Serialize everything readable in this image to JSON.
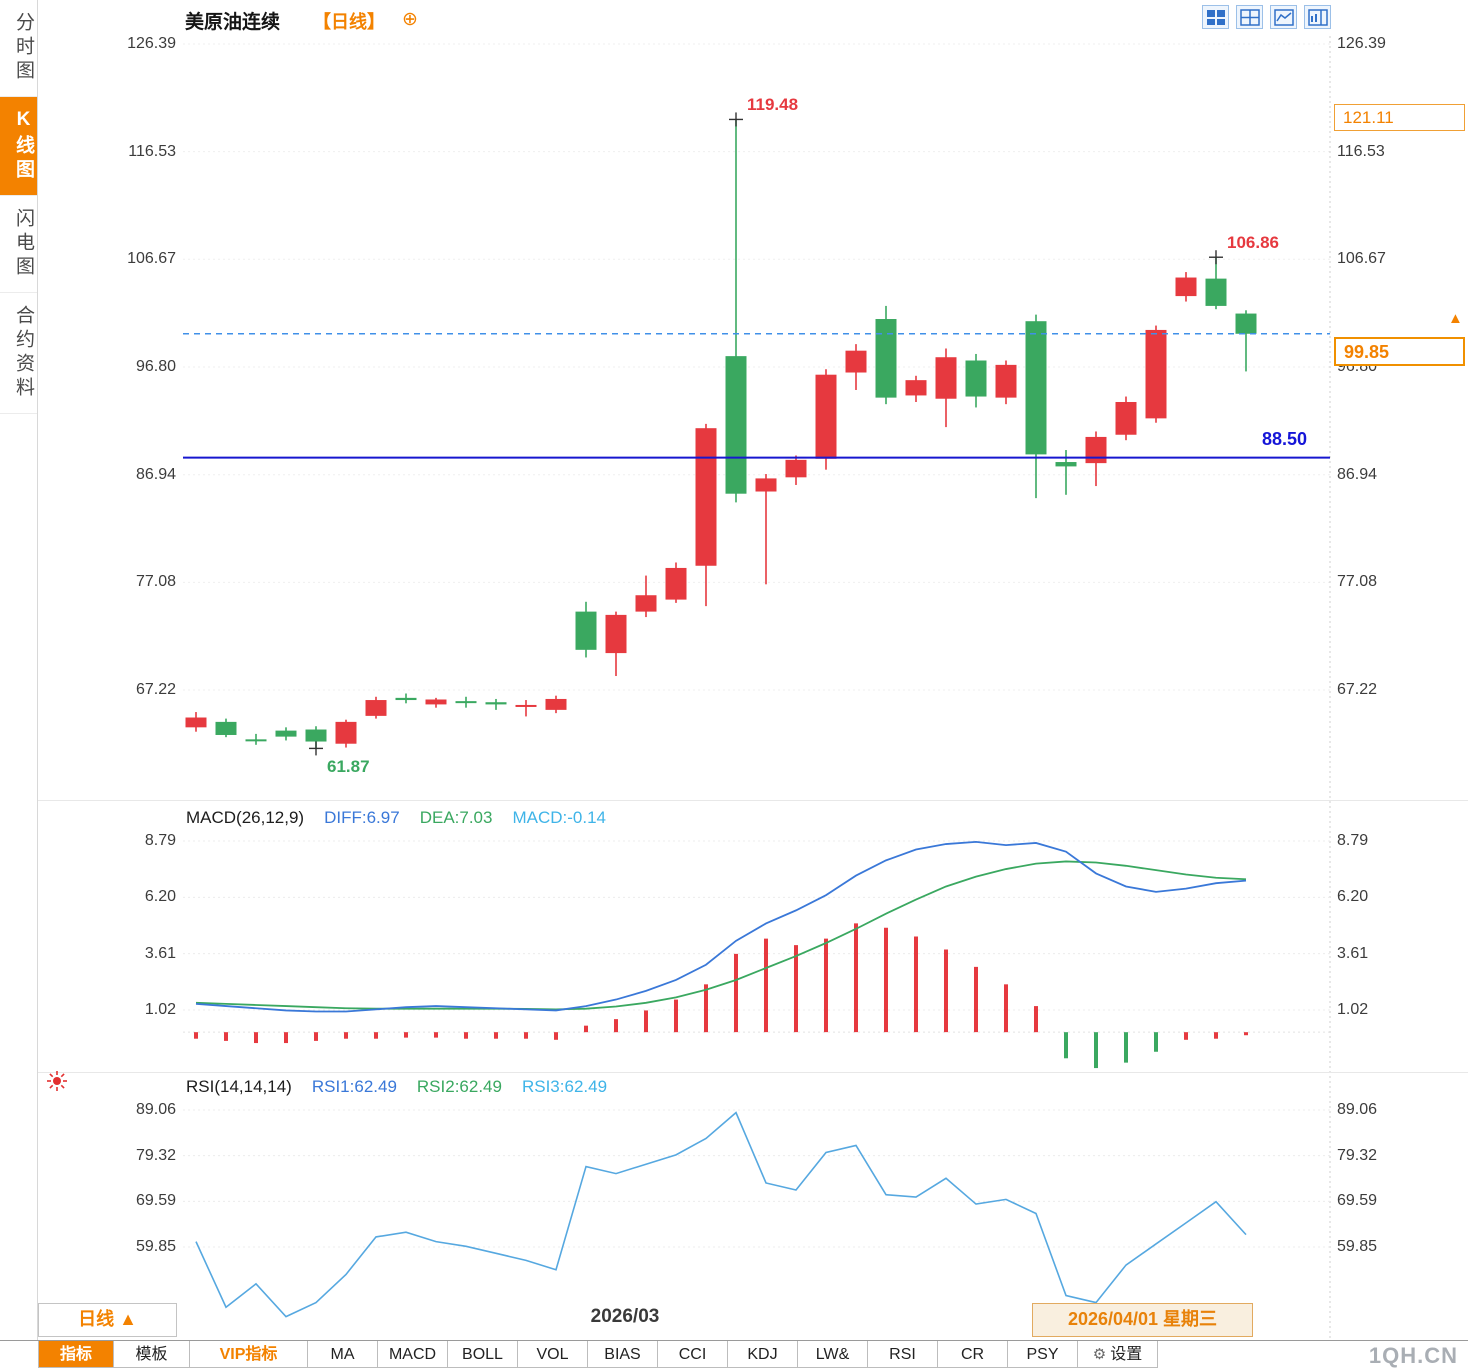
{
  "colors": {
    "up": "#e6393f",
    "down": "#3aa860",
    "accent_orange": "#f38200",
    "hline_blue": "#1717cf",
    "dashed_blue": "#4090e8",
    "diff_blue": "#3a78d8",
    "dea_green": "#3aa860",
    "macd_cyan": "#3fb4e8",
    "rsi_blue": "#56a8e0"
  },
  "sidebar": {
    "items": [
      {
        "label": "分时图",
        "active": false
      },
      {
        "label": "K线图",
        "active": true
      },
      {
        "label": "闪电图",
        "active": false
      },
      {
        "label": "合约资料",
        "active": false
      }
    ]
  },
  "header": {
    "title": "美原油连续",
    "period_tag": "【日线】"
  },
  "price_tags": {
    "upper_price": "121.11",
    "last_price": "99.85",
    "direction_arrow": "▲"
  },
  "macd_header": {
    "name": "MACD(26,12,9)",
    "diff": "DIFF:6.97",
    "dea": "DEA:7.03",
    "macd": "MACD:-0.14"
  },
  "rsi_header": {
    "name": "RSI(14,14,14)",
    "rsi1": "RSI1:62.49",
    "rsi2": "RSI2:62.49",
    "rsi3": "RSI3:62.49"
  },
  "footer": {
    "period": "日线",
    "arrow": "▲",
    "month": "2026/03",
    "date": "2026/04/01 星期三"
  },
  "toolbar": {
    "items": [
      "指标",
      "模板",
      "VIP指标",
      "MA",
      "MACD",
      "BOLL",
      "VOL",
      "BIAS",
      "CCI",
      "KDJ",
      "LW&",
      "RSI",
      "CR",
      "PSY",
      "设置"
    ]
  },
  "watermark": "1QH.CN",
  "chart_data": [
    {
      "type": "candlestick",
      "title": "美原油连续 日线",
      "y_ticks": [
        "126.39",
        "116.53",
        "106.67",
        "96.80",
        "86.94",
        "77.08",
        "67.22"
      ],
      "last_price": 99.85,
      "horizontal_line": 88.5,
      "hline_label": "88.50",
      "candles": [
        [
          63.8,
          65.2,
          63.4,
          64.7
        ],
        [
          64.3,
          64.6,
          62.9,
          63.1
        ],
        [
          62.7,
          63.2,
          62.2,
          62.6
        ],
        [
          63.5,
          63.8,
          62.6,
          62.95
        ],
        [
          63.6,
          63.9,
          61.87,
          62.5
        ],
        [
          62.3,
          64.5,
          61.95,
          64.3
        ],
        [
          64.85,
          66.6,
          64.6,
          66.3
        ],
        [
          66.5,
          66.9,
          66.0,
          66.3
        ],
        [
          65.9,
          66.5,
          65.6,
          66.35
        ],
        [
          66.2,
          66.6,
          65.6,
          66.1
        ],
        [
          66.1,
          66.4,
          65.4,
          65.9
        ],
        [
          65.7,
          66.3,
          64.8,
          65.85
        ],
        [
          65.4,
          66.7,
          65.1,
          66.4
        ],
        [
          74.4,
          75.3,
          70.2,
          70.9
        ],
        [
          70.6,
          74.4,
          68.5,
          74.1
        ],
        [
          74.4,
          77.7,
          73.9,
          75.9
        ],
        [
          75.5,
          78.9,
          75.2,
          78.4
        ],
        [
          78.6,
          91.6,
          74.9,
          91.2
        ],
        [
          97.8,
          119.48,
          84.4,
          85.2
        ],
        [
          85.4,
          87.0,
          76.9,
          86.6
        ],
        [
          86.7,
          88.7,
          86.0,
          88.3
        ],
        [
          88.4,
          96.6,
          87.4,
          96.1
        ],
        [
          96.3,
          98.9,
          94.7,
          98.3
        ],
        [
          101.2,
          102.4,
          93.4,
          94.0
        ],
        [
          94.2,
          96.0,
          93.6,
          95.6
        ],
        [
          93.9,
          98.5,
          91.3,
          97.7
        ],
        [
          97.4,
          98.0,
          93.1,
          94.1
        ],
        [
          94.0,
          97.4,
          93.4,
          97.0
        ],
        [
          101.0,
          101.6,
          84.8,
          88.8
        ],
        [
          88.1,
          89.2,
          85.1,
          87.7
        ],
        [
          88.0,
          90.9,
          85.9,
          90.4
        ],
        [
          90.6,
          94.1,
          90.1,
          93.6
        ],
        [
          92.1,
          100.6,
          91.7,
          100.2
        ],
        [
          103.3,
          105.5,
          102.8,
          105.0
        ],
        [
          104.9,
          106.86,
          102.1,
          102.4
        ],
        [
          101.7,
          102.0,
          96.4,
          99.85
        ]
      ],
      "markers": [
        {
          "index": 18,
          "price": 119.48,
          "label": "119.48",
          "color": "up"
        },
        {
          "index": 34,
          "price": 106.86,
          "label": "106.86",
          "color": "up"
        },
        {
          "index": 4,
          "price": 61.87,
          "label": "61.87",
          "color": "down"
        }
      ]
    },
    {
      "type": "macd",
      "params": "MACD(26,12,9)",
      "y_ticks": [
        "8.79",
        "6.20",
        "3.61",
        "1.02"
      ],
      "diff": [
        1.3,
        1.2,
        1.1,
        1.0,
        0.95,
        0.95,
        1.05,
        1.15,
        1.2,
        1.15,
        1.1,
        1.05,
        1.0,
        1.2,
        1.5,
        1.9,
        2.4,
        3.1,
        4.2,
        5.0,
        5.6,
        6.3,
        7.2,
        7.9,
        8.4,
        8.65,
        8.75,
        8.6,
        8.7,
        8.3,
        7.3,
        6.7,
        6.45,
        6.6,
        6.85,
        6.97
      ],
      "dea": [
        1.35,
        1.3,
        1.25,
        1.2,
        1.15,
        1.1,
        1.08,
        1.08,
        1.08,
        1.08,
        1.08,
        1.07,
        1.05,
        1.08,
        1.18,
        1.35,
        1.6,
        1.95,
        2.4,
        2.95,
        3.5,
        4.1,
        4.75,
        5.45,
        6.1,
        6.7,
        7.15,
        7.5,
        7.75,
        7.85,
        7.8,
        7.65,
        7.45,
        7.25,
        7.1,
        7.03
      ],
      "hist": [
        -0.3,
        -0.4,
        -0.5,
        -0.5,
        -0.4,
        -0.3,
        -0.3,
        -0.25,
        -0.25,
        -0.3,
        -0.3,
        -0.3,
        -0.35,
        0.3,
        0.6,
        1.0,
        1.5,
        2.2,
        3.6,
        4.3,
        4.0,
        4.3,
        5.0,
        4.8,
        4.4,
        3.8,
        3.0,
        2.2,
        1.2,
        -1.2,
        -1.65,
        -1.4,
        -0.9,
        -0.35,
        -0.3,
        -0.14
      ],
      "hist_colors": [
        "r",
        "r",
        "r",
        "r",
        "r",
        "r",
        "r",
        "r",
        "r",
        "r",
        "r",
        "r",
        "r",
        "r",
        "r",
        "r",
        "r",
        "r",
        "r",
        "r",
        "r",
        "r",
        "r",
        "r",
        "r",
        "r",
        "r",
        "r",
        "r",
        "g",
        "g",
        "g",
        "g",
        "r",
        "r",
        "r"
      ]
    },
    {
      "type": "line",
      "params": "RSI(14,14,14)",
      "y_ticks": [
        "89.06",
        "79.32",
        "69.59",
        "59.85"
      ],
      "rsi": [
        61,
        47,
        52,
        45,
        48,
        54,
        62,
        63,
        61,
        60,
        58.5,
        57,
        55,
        77,
        75.5,
        77.5,
        79.5,
        83,
        88.5,
        73.5,
        72,
        80,
        81.5,
        71,
        70.5,
        74.5,
        69,
        70,
        67,
        49.5,
        48,
        56,
        60.5,
        65,
        69.5,
        62.49
      ]
    }
  ]
}
